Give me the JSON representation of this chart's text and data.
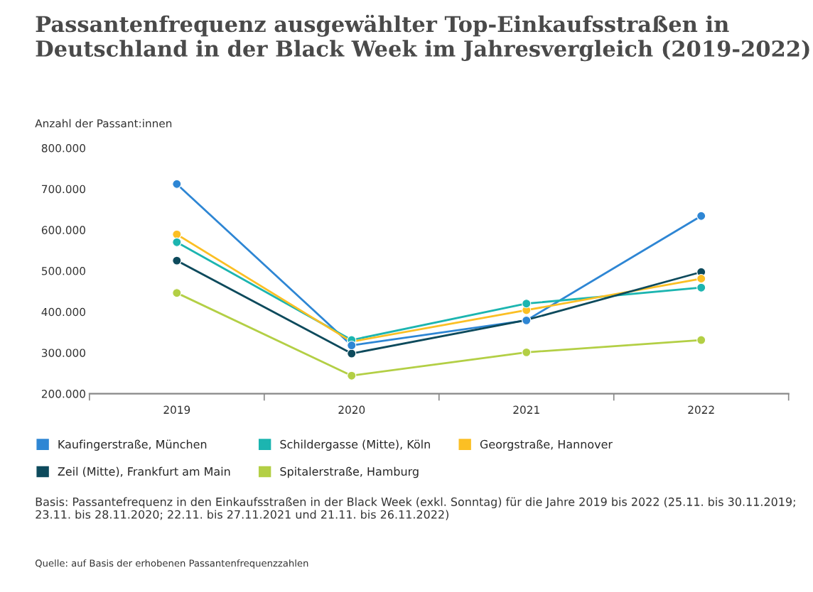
{
  "chart_data": {
    "type": "line",
    "title": "Passantenfrequenz ausgewählter Top-Einkaufsstraßen in Deutschland in der Black Week im Jahresvergleich (2019-2022)",
    "ylabel": "Anzahl der Passant:innen",
    "categories": [
      "2019",
      "2020",
      "2021",
      "2022"
    ],
    "series": [
      {
        "name": "Kaufingerstraße, München",
        "color": "#2e86d4",
        "values": [
          712000,
          318000,
          379000,
          634000
        ]
      },
      {
        "name": "Schildergasse (Mitte), Köln",
        "color": "#1cb5b0",
        "values": [
          570000,
          331000,
          420000,
          459000
        ]
      },
      {
        "name": "Georgstraße, Hannover",
        "color": "#fbbf24",
        "values": [
          589000,
          327000,
          404000,
          481000
        ]
      },
      {
        "name": "Zeil (Mitte), Frankfurt am Main",
        "color": "#0d4a5c",
        "values": [
          525000,
          298000,
          380000,
          497000
        ]
      },
      {
        "name": "Spitalerstraße, Hamburg",
        "color": "#b3cf45",
        "values": [
          446000,
          244000,
          301000,
          331000
        ]
      }
    ],
    "ylim": [
      200000,
      800000
    ],
    "yticks": [
      {
        "value": 200000,
        "label": "200.000"
      },
      {
        "value": 300000,
        "label": "300.000"
      },
      {
        "value": 400000,
        "label": "400.000"
      },
      {
        "value": 500000,
        "label": "500.000"
      },
      {
        "value": 600000,
        "label": "600.000"
      },
      {
        "value": 700000,
        "label": "700.000"
      },
      {
        "value": 800000,
        "label": "800.000"
      }
    ],
    "marker": "circle",
    "grid": false,
    "legend": "bottom",
    "annotations": [
      "Basis: Passantefrequenz in den Einkaufsstraßen in der Black Week (exkl. Sonntag) für die Jahre 2019 bis 2022 (25.11. bis 30.11.2019; 23.11. bis 28.11.2020; 22.11. bis 27.11.2021 und 21.11. bis 26.11.2022)",
      "Quelle: auf Basis der erhobenen Passantenfrequenzzahlen"
    ]
  }
}
